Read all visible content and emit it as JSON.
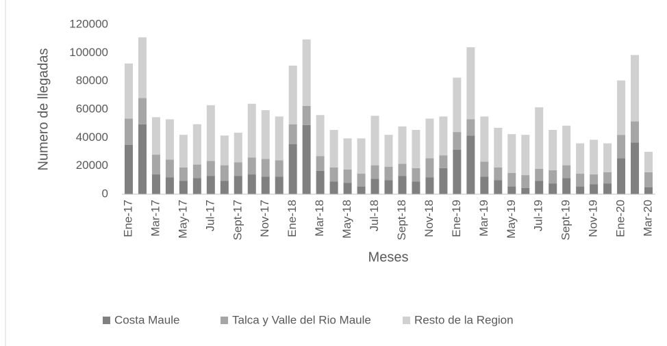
{
  "chart_data": {
    "type": "stacked_bar",
    "x_label": "Meses",
    "y_label": "Numero de llegadas",
    "categories": [
      "Ene-17",
      null,
      "Mar-17",
      null,
      "May-17",
      null,
      "Jul-17",
      null,
      "Sept-17",
      null,
      "Nov-17",
      null,
      "Ene-18",
      null,
      "Mar-18",
      null,
      "May-18",
      null,
      "Jul-18",
      null,
      "Sept-18",
      null,
      "Nov-18",
      null,
      "Ene-19",
      null,
      "Mar-19",
      null,
      "May-19",
      null,
      "Jul-19",
      null,
      "Sept-19",
      null,
      "Nov-19",
      null,
      "Ene-20",
      null,
      "Mar-20"
    ],
    "series": [
      {
        "name": "Costa Maule",
        "color": "#808080",
        "values": [
          35000,
          49500,
          14000,
          12000,
          9500,
          11500,
          13000,
          9500,
          13000,
          14000,
          12500,
          12500,
          35500,
          49000,
          16500,
          9000,
          8000,
          5500,
          11000,
          10000,
          13000,
          9000,
          12000,
          18500,
          31500,
          41500,
          12500,
          10000,
          5500,
          4500,
          9500,
          7500,
          11500,
          5500,
          7000,
          7500,
          25500,
          36500,
          5000
        ]
      },
      {
        "name": "Talca y Valle del Rio Maule",
        "color": "#a6a6a6",
        "values": [
          18500,
          18500,
          14000,
          12500,
          9500,
          9500,
          10500,
          11000,
          9500,
          12000,
          12500,
          11500,
          14000,
          13500,
          10500,
          10000,
          9500,
          9000,
          9500,
          9500,
          8500,
          9500,
          13500,
          9000,
          12500,
          11500,
          10500,
          9000,
          9500,
          9000,
          8500,
          9500,
          9000,
          9000,
          7000,
          8000,
          16500,
          15000,
          10500
        ]
      },
      {
        "name": "Resto de la Region",
        "color": "#d0d0d0",
        "values": [
          39000,
          43000,
          26500,
          28500,
          23000,
          28500,
          39500,
          21000,
          21000,
          38000,
          34500,
          31000,
          41500,
          47000,
          29000,
          26500,
          22000,
          25000,
          35000,
          22500,
          26500,
          27000,
          28000,
          27500,
          38500,
          51000,
          32000,
          28000,
          27500,
          28500,
          43500,
          28500,
          28000,
          21500,
          24500,
          20500,
          38500,
          47000,
          14500
        ]
      }
    ],
    "ylim": [
      0,
      120000
    ],
    "yticks": [
      0,
      20000,
      40000,
      60000,
      80000,
      100000,
      120000
    ],
    "legend": "bottom"
  }
}
